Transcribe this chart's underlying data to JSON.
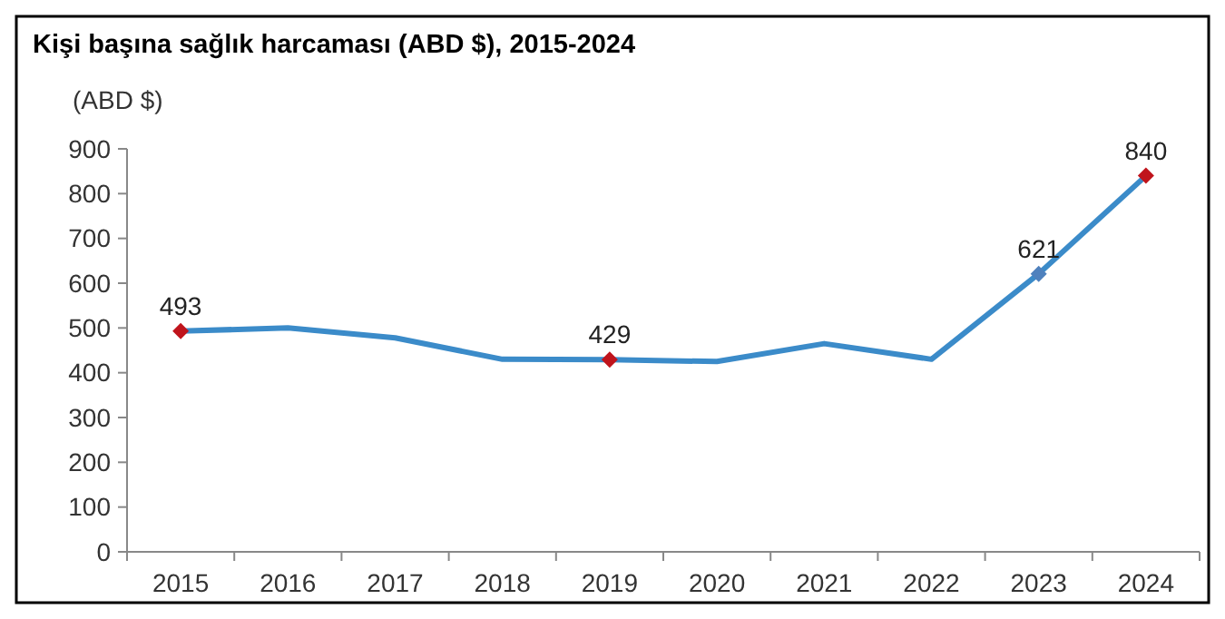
{
  "chart_data": {
    "type": "line",
    "title": "Kişi başına sağlık harcaması (ABD $), 2015-2024",
    "ylabel": "(ABD $)",
    "categories": [
      "2015",
      "2016",
      "2017",
      "2018",
      "2019",
      "2020",
      "2021",
      "2022",
      "2023",
      "2024"
    ],
    "series": [
      {
        "color": "#3b8bc9",
        "values": [
          493,
          500,
          478,
          430,
          429,
          425,
          465,
          430,
          621,
          840
        ],
        "value_labels": [
          "493",
          null,
          null,
          null,
          "429",
          null,
          null,
          null,
          "621",
          "840"
        ]
      },
      {
        "type": "scatter",
        "marker": "diamond",
        "values": [
          493,
          null,
          null,
          null,
          429,
          null,
          null,
          null,
          621,
          840
        ],
        "colors": [
          "#c0141c",
          null,
          null,
          null,
          "#c0141c",
          null,
          null,
          null,
          "#4f81bd",
          "#c0141c"
        ]
      }
    ],
    "ylim": [
      0,
      900
    ],
    "yticks": [
      0,
      100,
      200,
      300,
      400,
      500,
      600,
      700,
      800,
      900
    ],
    "grid": false,
    "marker": "none",
    "line_style": "solid"
  }
}
